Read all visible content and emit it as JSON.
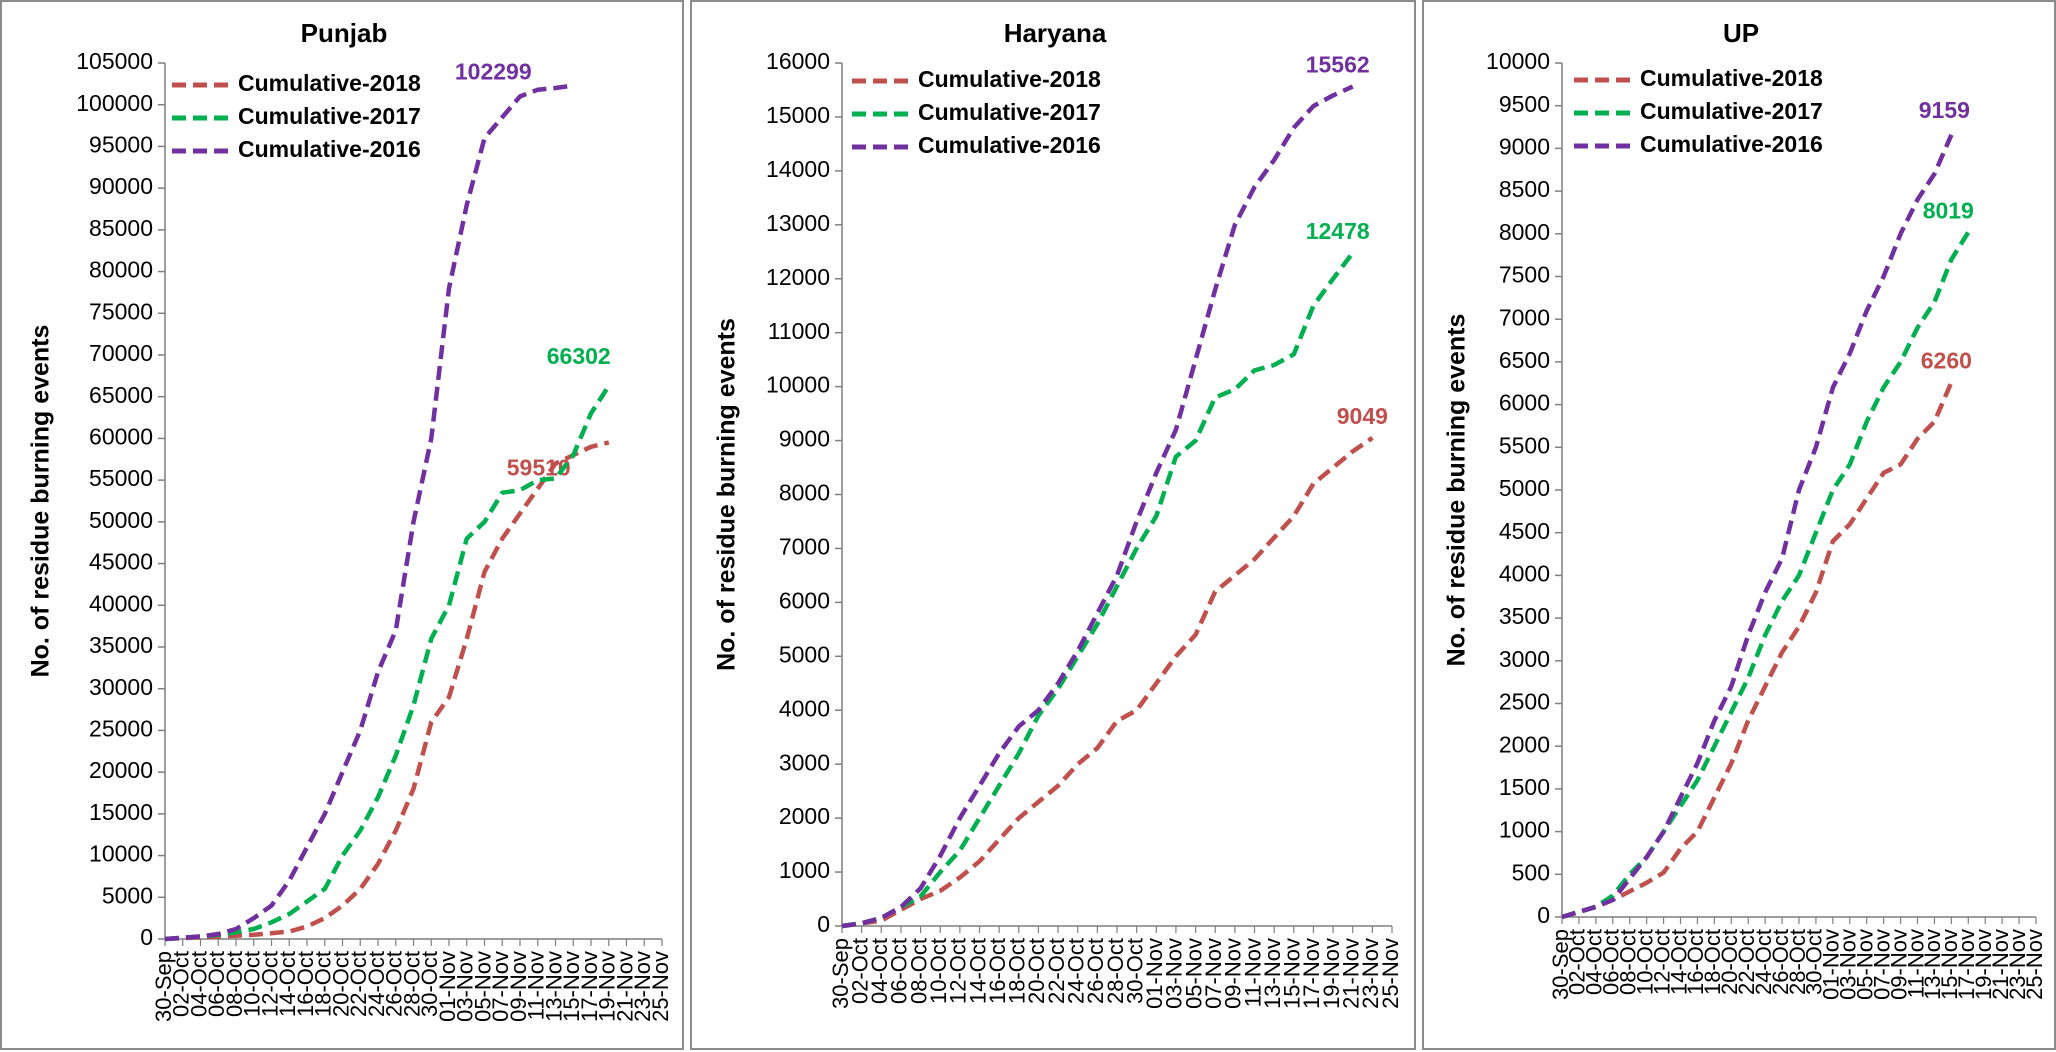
{
  "colors": {
    "cumulative_2018": "#c0504d",
    "cumulative_2017": "#00b050",
    "cumulative_2016": "#7030a0",
    "axis": "#7f7f7f",
    "text": "#000000",
    "border": "#8c8c8c"
  },
  "dates": [
    "30-Sep",
    "02-Oct",
    "04-Oct",
    "06-Oct",
    "08-Oct",
    "10-Oct",
    "12-Oct",
    "14-Oct",
    "16-Oct",
    "18-Oct",
    "20-Oct",
    "22-Oct",
    "24-Oct",
    "26-Oct",
    "28-Oct",
    "30-Oct",
    "01-Nov",
    "03-Nov",
    "05-Nov",
    "07-Nov",
    "09-Nov",
    "11-Nov",
    "13-Nov",
    "15-Nov",
    "17-Nov",
    "19-Nov",
    "21-Nov",
    "23-Nov",
    "25-Nov"
  ],
  "chart_data": [
    {
      "type": "line",
      "title": "Punjab",
      "ylabel": "No. of residue burning events",
      "xlabel": "",
      "ylim": [
        0,
        105000
      ],
      "ystep": 5000,
      "legend_position": "top-left",
      "grid": false,
      "series": [
        {
          "name": "Cumulative-2018",
          "color_key": "cumulative_2018",
          "values": [
            0,
            100,
            200,
            300,
            400,
            500,
            700,
            900,
            1500,
            2500,
            4000,
            6000,
            9000,
            13000,
            18000,
            26000,
            29000,
            36000,
            44000,
            48000,
            51000,
            54000,
            57000,
            58000,
            59000,
            59510
          ],
          "end_label": "59510"
        },
        {
          "name": "Cumulative-2017",
          "color_key": "cumulative_2017",
          "values": [
            0,
            150,
            300,
            500,
            800,
            1200,
            2000,
            3000,
            4500,
            6000,
            10000,
            13000,
            17000,
            22000,
            28000,
            36000,
            40000,
            48000,
            50000,
            53500,
            53800,
            55000,
            55200,
            58000,
            63000,
            66302
          ],
          "end_label": "66302"
        },
        {
          "name": "Cumulative-2016",
          "color_key": "cumulative_2016",
          "values": [
            0,
            150,
            300,
            600,
            1200,
            2500,
            4000,
            7000,
            11000,
            15000,
            20000,
            25000,
            32000,
            37000,
            50000,
            60000,
            78000,
            88000,
            96000,
            98500,
            101000,
            101800,
            102000,
            102299
          ],
          "end_label": "102299"
        }
      ]
    },
    {
      "type": "line",
      "title": "Haryana",
      "ylabel": "No. of residue burning events",
      "xlabel": "",
      "ylim": [
        0,
        16000
      ],
      "ystep": 1000,
      "legend_position": "top-left",
      "grid": false,
      "series": [
        {
          "name": "Cumulative-2018",
          "color_key": "cumulative_2018",
          "values": [
            0,
            50,
            100,
            300,
            500,
            650,
            900,
            1200,
            1600,
            2000,
            2300,
            2600,
            3000,
            3300,
            3800,
            4000,
            4500,
            5000,
            5400,
            6200,
            6500,
            6800,
            7200,
            7600,
            8200,
            8500,
            8800,
            9049
          ],
          "end_label": "9049"
        },
        {
          "name": "Cumulative-2017",
          "color_key": "cumulative_2017",
          "values": [
            0,
            50,
            150,
            350,
            550,
            1000,
            1400,
            2000,
            2600,
            3200,
            3900,
            4400,
            5000,
            5600,
            6300,
            7000,
            7600,
            8700,
            9000,
            9800,
            9950,
            10300,
            10400,
            10600,
            11500,
            12000,
            12478
          ],
          "end_label": "12478"
        },
        {
          "name": "Cumulative-2016",
          "color_key": "cumulative_2016",
          "values": [
            0,
            50,
            150,
            350,
            700,
            1300,
            2000,
            2600,
            3200,
            3700,
            4000,
            4500,
            5100,
            5800,
            6500,
            7500,
            8400,
            9200,
            10500,
            11800,
            13000,
            13700,
            14200,
            14800,
            15200,
            15400,
            15562
          ],
          "end_label": "15562"
        }
      ]
    },
    {
      "type": "line",
      "title": "UP",
      "ylabel": "No. of residue burning events",
      "xlabel": "",
      "ylim": [
        0,
        10000
      ],
      "ystep": 500,
      "legend_position": "top-left",
      "grid": false,
      "series": [
        {
          "name": "Cumulative-2018",
          "color_key": "cumulative_2018",
          "values": [
            0,
            60,
            120,
            200,
            300,
            400,
            520,
            800,
            1000,
            1400,
            1800,
            2300,
            2700,
            3100,
            3400,
            3800,
            4400,
            4600,
            4900,
            5200,
            5300,
            5600,
            5800,
            6260
          ],
          "end_label": "6260"
        },
        {
          "name": "Cumulative-2017",
          "color_key": "cumulative_2017",
          "values": [
            0,
            60,
            120,
            250,
            500,
            700,
            1000,
            1300,
            1600,
            2000,
            2400,
            2800,
            3300,
            3700,
            4000,
            4500,
            5000,
            5300,
            5800,
            6200,
            6500,
            6900,
            7200,
            7700,
            8019
          ],
          "end_label": "8019"
        },
        {
          "name": "Cumulative-2016",
          "color_key": "cumulative_2016",
          "values": [
            0,
            60,
            120,
            200,
            450,
            700,
            1000,
            1400,
            1800,
            2300,
            2700,
            3300,
            3800,
            4200,
            5000,
            5500,
            6200,
            6600,
            7100,
            7500,
            8000,
            8400,
            8700,
            9159
          ],
          "end_label": "9159"
        }
      ]
    }
  ]
}
